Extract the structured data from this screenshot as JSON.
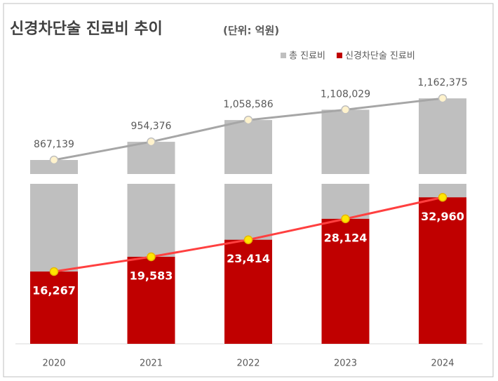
{
  "chart_data": {
    "type": "bar",
    "title": "신경차단술 진료비 추이",
    "subtitle": "(단위: 억원)",
    "categories": [
      "2020",
      "2021",
      "2022",
      "2023",
      "2024"
    ],
    "series": [
      {
        "name": "총 진료비",
        "color": "#bfbfbf",
        "line_color": "#a6a6a6",
        "axis": "y2",
        "values": [
          867139,
          954376,
          1058586,
          1108029,
          1162375
        ],
        "value_labels": [
          "867,139",
          "954,376",
          "1,058,586",
          "1,108,029",
          "1,162,375"
        ]
      },
      {
        "name": "신경차단술 진료비",
        "color": "#c00000",
        "line_color": "#ff4040",
        "values": [
          16267,
          19583,
          23414,
          28124,
          32960
        ],
        "value_labels": [
          "16,267",
          "19,583",
          "23,414",
          "28,124",
          "32,960"
        ]
      }
    ],
    "ylim": [
      0,
      36000
    ],
    "y2lim": [
      800000,
      1200000
    ],
    "legend": "top-right"
  }
}
